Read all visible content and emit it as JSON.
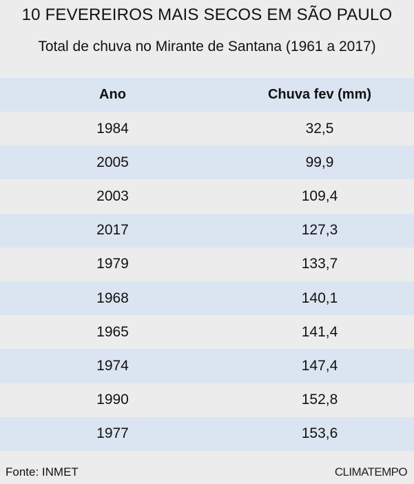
{
  "chart_data": {
    "type": "table",
    "title": "10 FEVEREIROS MAIS SECOS EM SÃO PAULO",
    "subtitle": "Total de chuva no Mirante de Santana (1961 a 2017)",
    "columns": [
      "Ano",
      "Chuva fev (mm)"
    ],
    "rows": [
      [
        "1984",
        "32,5"
      ],
      [
        "2005",
        "99,9"
      ],
      [
        "2003",
        "109,4"
      ],
      [
        "2017",
        "127,3"
      ],
      [
        "1979",
        "133,7"
      ],
      [
        "1968",
        "140,1"
      ],
      [
        "1965",
        "141,4"
      ],
      [
        "1974",
        "147,4"
      ],
      [
        "1990",
        "152,8"
      ],
      [
        "1977",
        "153,6"
      ]
    ]
  },
  "footer": {
    "source": "Fonte: INMET",
    "brand": "CLIMATEMPO"
  },
  "colors": {
    "background": "#ececec",
    "band": "#dbe5f1"
  }
}
